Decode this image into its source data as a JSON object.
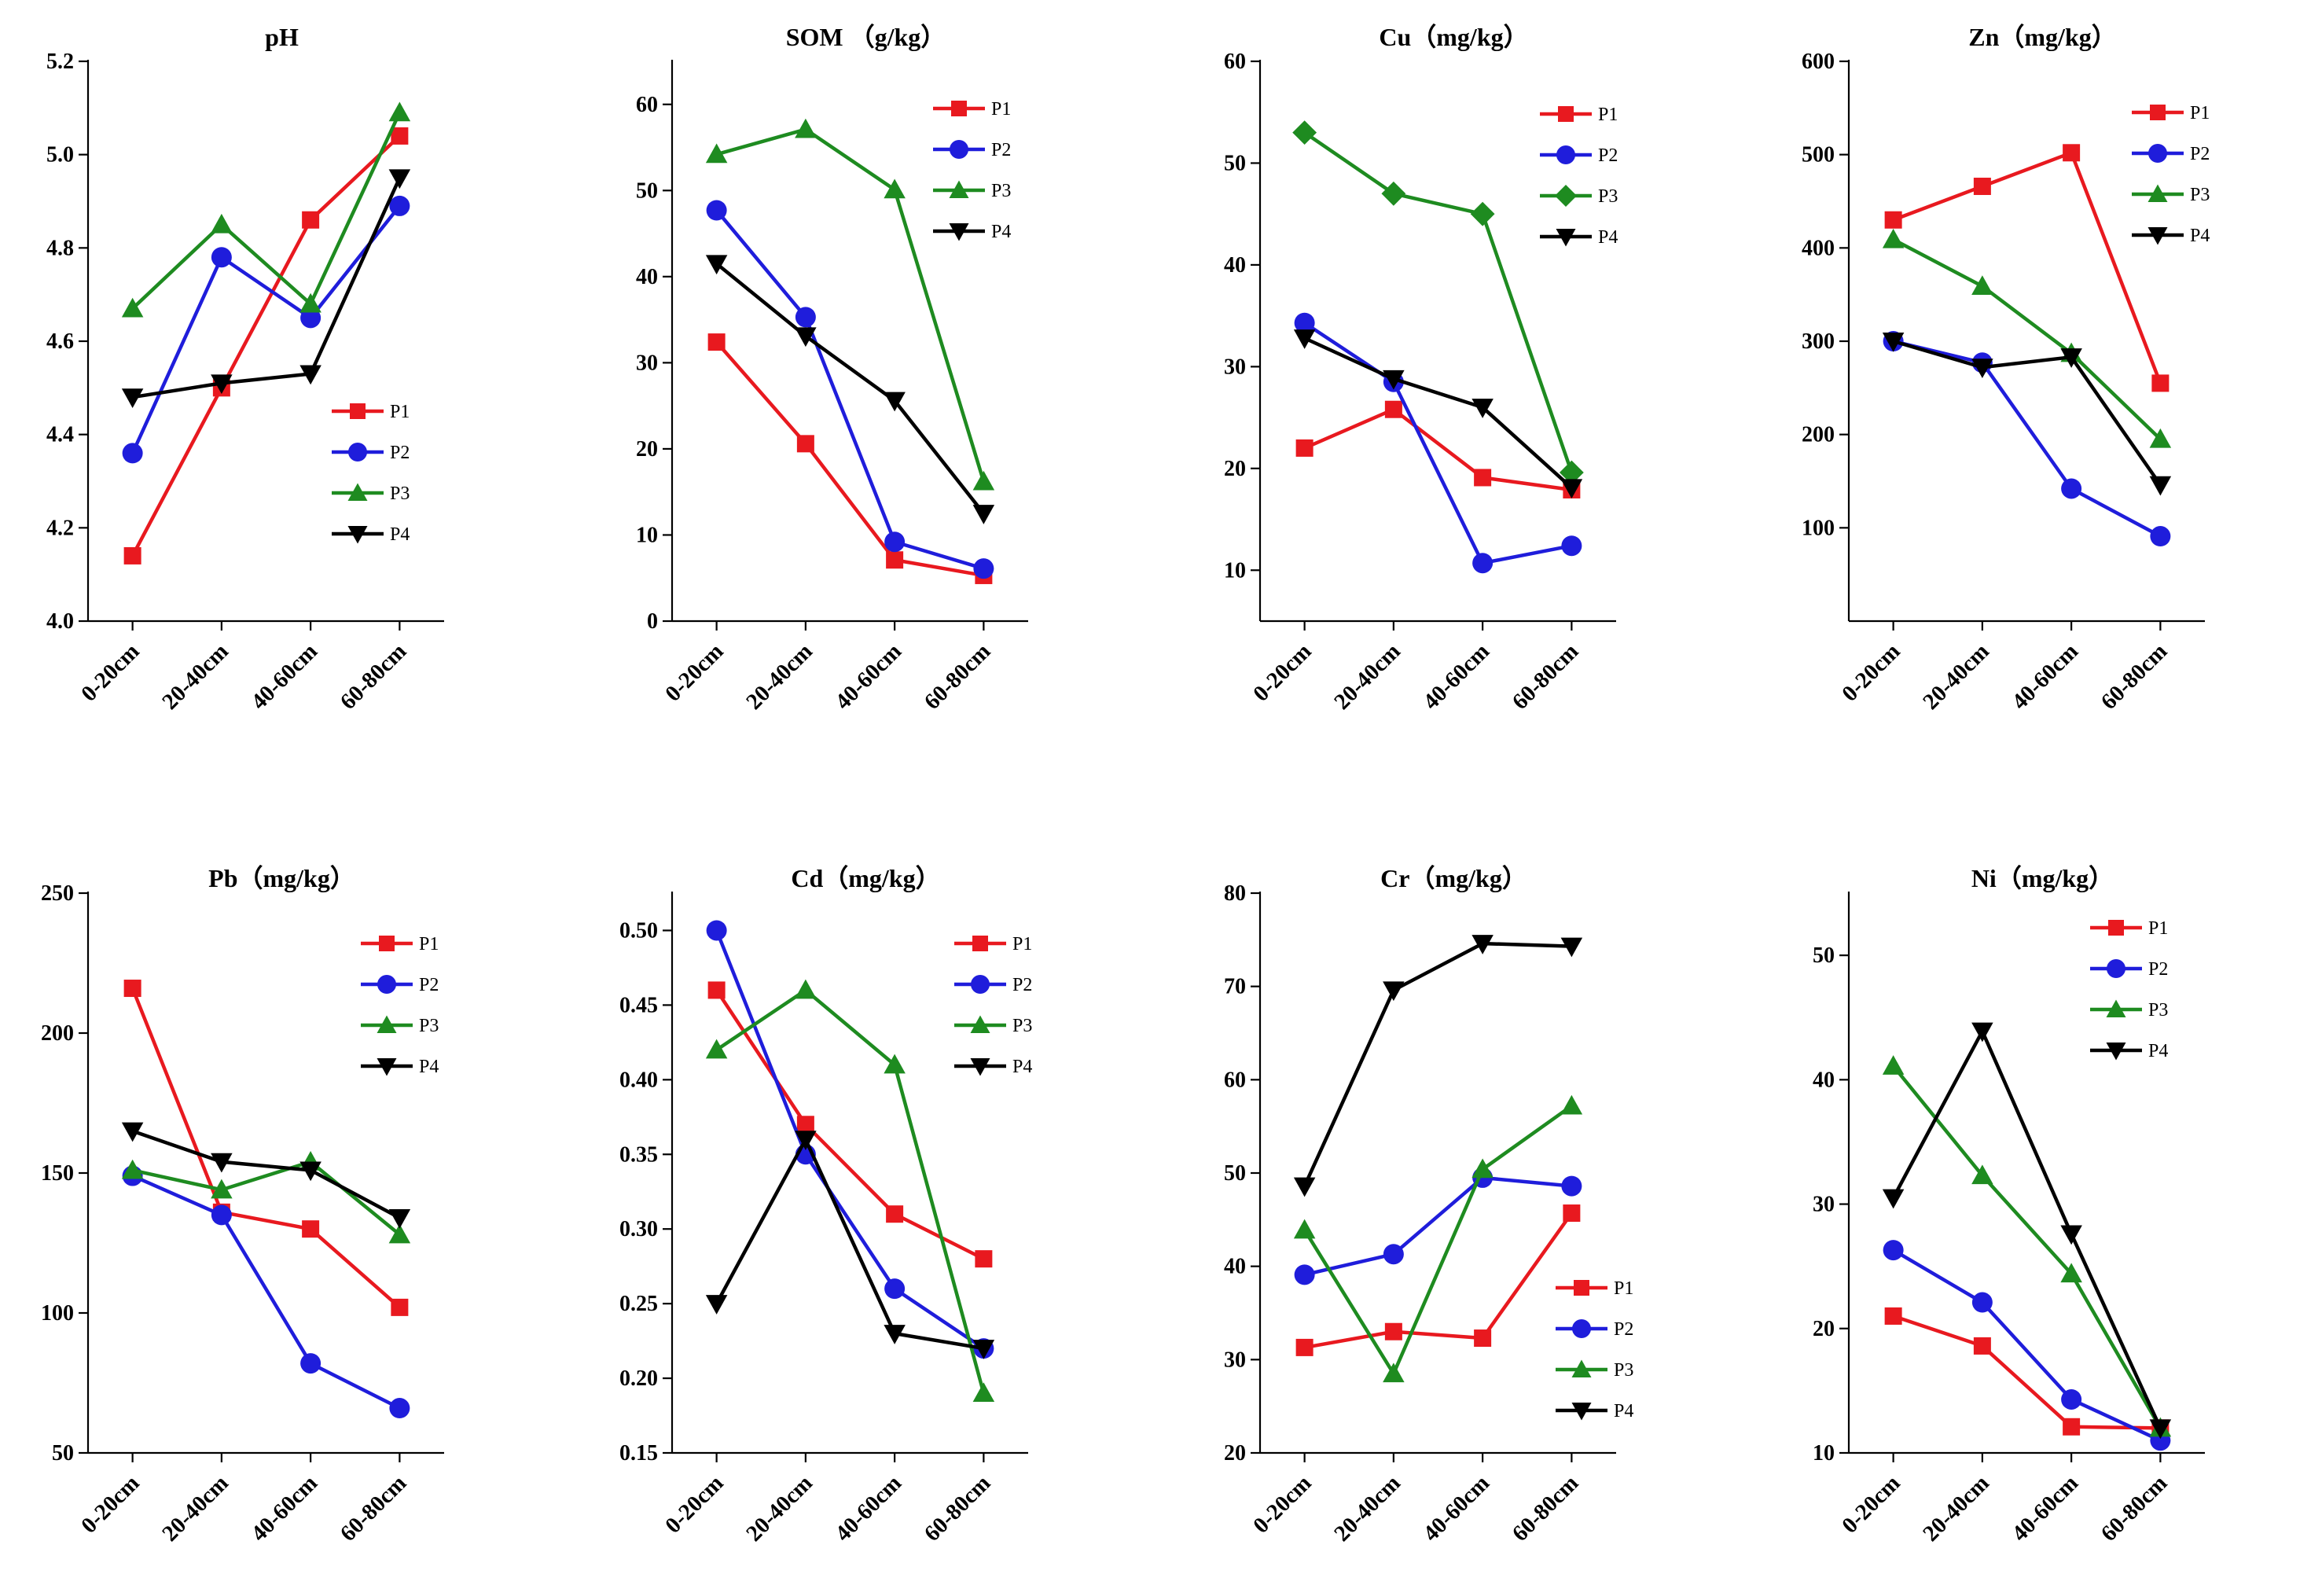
{
  "categories": [
    "0-20cm",
    "20-40cm",
    "40-60cm",
    "60-80cm"
  ],
  "series_names": [
    "P1",
    "P2",
    "P3",
    "P4"
  ],
  "colors": {
    "P1": "#e8191f",
    "P2": "#1f1ddb",
    "P3": "#1e8b20",
    "P4": "#000000"
  },
  "chart_data": [
    {
      "type": "line",
      "title": "pH",
      "ylim": [
        4.0,
        5.2
      ],
      "ticks": [
        "4.0",
        "4.2",
        "4.4",
        "4.6",
        "4.8",
        "5.0",
        "5.2"
      ],
      "legend": "bottom-right",
      "p3_marker": "triangle",
      "series": [
        {
          "name": "P1",
          "values": [
            4.14,
            4.5,
            4.86,
            5.04
          ]
        },
        {
          "name": "P2",
          "values": [
            4.36,
            4.78,
            4.65,
            4.89
          ]
        },
        {
          "name": "P3",
          "values": [
            4.67,
            4.85,
            4.68,
            5.09
          ]
        },
        {
          "name": "P4",
          "values": [
            4.48,
            4.51,
            4.53,
            4.95
          ]
        }
      ]
    },
    {
      "type": "line",
      "title": "SOM （g/kg）",
      "ylim": [
        0,
        65
      ],
      "ticks": [
        "0",
        "10",
        "20",
        "30",
        "40",
        "50",
        "60"
      ],
      "legend": "top-right",
      "p3_marker": "triangle",
      "series": [
        {
          "name": "P1",
          "values": [
            32.4,
            20.6,
            7.1,
            5.3
          ]
        },
        {
          "name": "P2",
          "values": [
            47.7,
            35.3,
            9.2,
            6.1
          ]
        },
        {
          "name": "P3",
          "values": [
            54.2,
            57.1,
            50.1,
            16.2
          ]
        },
        {
          "name": "P4",
          "values": [
            41.5,
            33.1,
            25.6,
            12.5
          ]
        }
      ]
    },
    {
      "type": "line",
      "title": "Cu（mg/kg）",
      "ylim": [
        5,
        60
      ],
      "ticks": [
        "10",
        "20",
        "30",
        "40",
        "50",
        "60"
      ],
      "legend": "top-right",
      "p3_marker": "diamond",
      "series": [
        {
          "name": "P1",
          "values": [
            22.0,
            25.8,
            19.1,
            17.9
          ]
        },
        {
          "name": "P2",
          "values": [
            34.3,
            28.5,
            10.7,
            12.4
          ]
        },
        {
          "name": "P3",
          "values": [
            53.0,
            47.0,
            45.0,
            19.6
          ]
        },
        {
          "name": "P4",
          "values": [
            32.8,
            28.8,
            26.0,
            18.1
          ]
        }
      ]
    },
    {
      "type": "line",
      "title": "Zn（mg/kg）",
      "ylim": [
        0,
        600
      ],
      "ticks": [
        "100",
        "200",
        "300",
        "400",
        "500",
        "600"
      ],
      "legend": "top-right",
      "p3_marker": "triangle",
      "series": [
        {
          "name": "P1",
          "values": [
            430,
            466,
            502,
            255
          ]
        },
        {
          "name": "P2",
          "values": [
            300,
            277,
            142,
            91
          ]
        },
        {
          "name": "P3",
          "values": [
            409,
            359,
            287,
            195
          ]
        },
        {
          "name": "P4",
          "values": [
            300,
            272,
            283,
            146
          ]
        }
      ]
    },
    {
      "type": "line",
      "title": "Pb（mg/kg）",
      "ylim": [
        50,
        250
      ],
      "ticks": [
        "50",
        "100",
        "150",
        "200",
        "250"
      ],
      "legend": "top-right",
      "p3_marker": "triangle",
      "series": [
        {
          "name": "P1",
          "values": [
            216,
            136,
            130,
            102
          ]
        },
        {
          "name": "P2",
          "values": [
            149,
            135,
            82,
            66
          ]
        },
        {
          "name": "P3",
          "values": [
            151,
            144,
            154,
            128
          ]
        },
        {
          "name": "P4",
          "values": [
            165,
            154,
            151,
            134
          ]
        }
      ]
    },
    {
      "type": "line",
      "title": "Cd（mg/kg）",
      "ylim": [
        0.15,
        0.525
      ],
      "ticks": [
        "0.15",
        "0.20",
        "0.25",
        "0.30",
        "0.35",
        "0.40",
        "0.45",
        "0.50"
      ],
      "legend": "top-right",
      "p3_marker": "triangle",
      "series": [
        {
          "name": "P1",
          "values": [
            0.46,
            0.37,
            0.31,
            0.28
          ]
        },
        {
          "name": "P2",
          "values": [
            0.5,
            0.35,
            0.26,
            0.22
          ]
        },
        {
          "name": "P3",
          "values": [
            0.42,
            0.46,
            0.41,
            0.19
          ]
        },
        {
          "name": "P4",
          "values": [
            0.25,
            0.36,
            0.23,
            0.22
          ]
        }
      ]
    },
    {
      "type": "line",
      "title": "Cr（mg/kg）",
      "ylim": [
        20,
        80
      ],
      "ticks": [
        "20",
        "30",
        "40",
        "50",
        "60",
        "70",
        "80"
      ],
      "legend": "bottom-right",
      "p3_marker": "triangle",
      "series": [
        {
          "name": "P1",
          "values": [
            31.3,
            33.0,
            32.3,
            45.7
          ]
        },
        {
          "name": "P2",
          "values": [
            39.1,
            41.3,
            49.5,
            48.6
          ]
        },
        {
          "name": "P3",
          "values": [
            43.9,
            28.5,
            50.4,
            57.2
          ]
        },
        {
          "name": "P4",
          "values": [
            48.6,
            69.6,
            74.6,
            74.3
          ]
        }
      ]
    },
    {
      "type": "line",
      "title": "Ni（mg/kg）",
      "ylim": [
        10,
        55
      ],
      "ticks": [
        "10",
        "20",
        "30",
        "40",
        "50"
      ],
      "legend": "top-right",
      "p3_marker": "triangle",
      "series": [
        {
          "name": "P1",
          "values": [
            21.0,
            18.6,
            12.1,
            12.0
          ]
        },
        {
          "name": "P2",
          "values": [
            26.3,
            22.1,
            14.3,
            11.0
          ]
        },
        {
          "name": "P3",
          "values": [
            41.1,
            32.3,
            24.4,
            12.0
          ]
        },
        {
          "name": "P4",
          "values": [
            30.5,
            43.9,
            27.6,
            12.0
          ]
        }
      ]
    }
  ]
}
